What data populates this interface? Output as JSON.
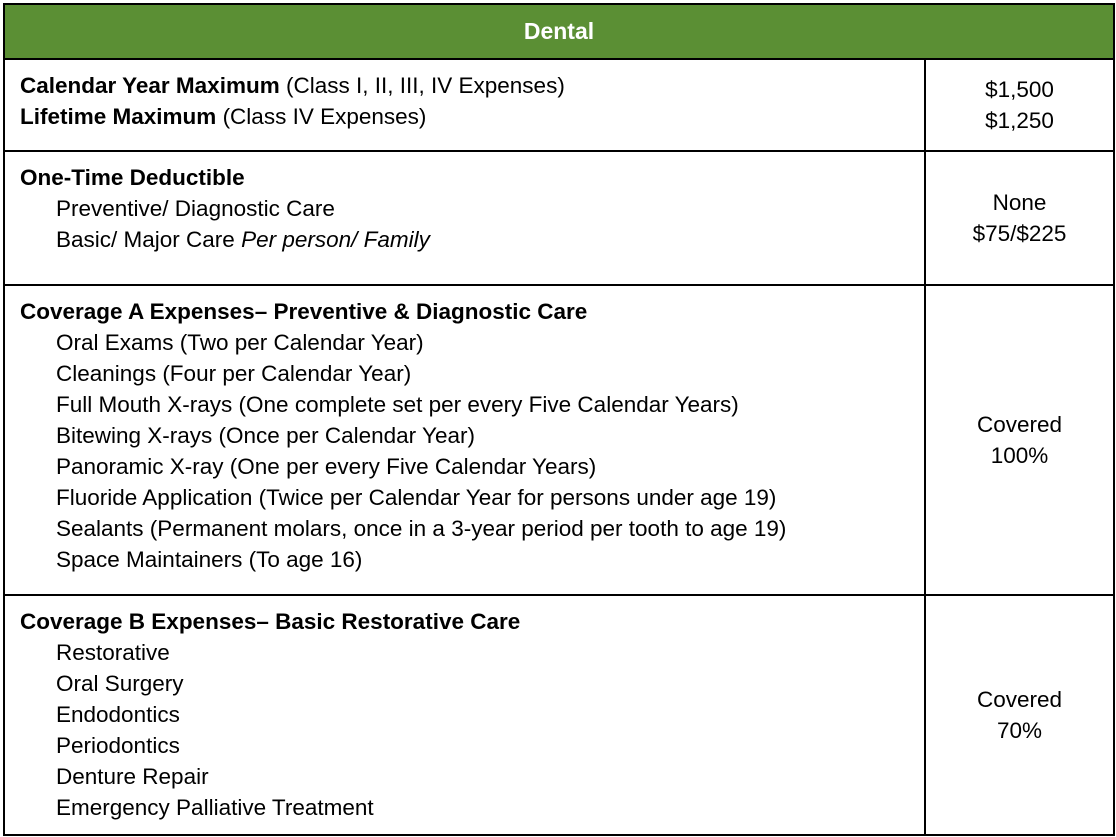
{
  "header": {
    "title": "Dental"
  },
  "maximums": {
    "calendar_label": "Calendar Year Maximum",
    "calendar_note": "(Class I, II, III, IV Expenses)",
    "lifetime_label": "Lifetime Maximum",
    "lifetime_note": "(Class IV Expenses)",
    "calendar_value": "$1,500",
    "lifetime_value": "$1,250"
  },
  "deductible": {
    "title": "One-Time Deductible",
    "preventive_label": "Preventive/ Diagnostic Care",
    "basic_label": "Basic/ Major Care ",
    "basic_note": "Per person/ Family",
    "preventive_value": "None",
    "basic_value": "$75/$225"
  },
  "coverage_a": {
    "title": "Coverage A Expenses– Preventive & Diagnostic Care",
    "items": [
      "Oral Exams (Two per Calendar Year)",
      "Cleanings (Four per Calendar Year)",
      "Full Mouth X-rays (One complete set per every Five Calendar Years)",
      "Bitewing X-rays (Once per Calendar Year)",
      "Panoramic X-ray (One per every Five Calendar Years)",
      "Fluoride Application (Twice per Calendar Year for persons under age 19)",
      "Sealants (Permanent molars, once in a 3-year period per tooth to age 19)",
      "Space Maintainers (To age 16)"
    ],
    "value_line1": "Covered",
    "value_line2": "100%"
  },
  "coverage_b": {
    "title": "Coverage B Expenses– Basic Restorative Care",
    "items": [
      "Restorative",
      "Oral Surgery",
      "Endodontics",
      "Periodontics",
      "Denture Repair",
      "Emergency Palliative Treatment"
    ],
    "value_line1": "Covered",
    "value_line2": "70%"
  }
}
